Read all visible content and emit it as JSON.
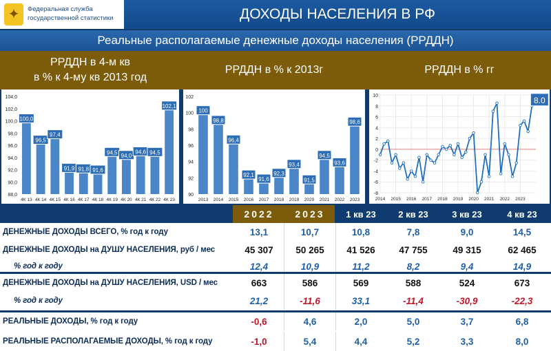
{
  "header": {
    "org": "Федеральная служба государственной статистики",
    "title": "ДОХОДЫ НАСЕЛЕНИЯ В РФ",
    "subtitle": "Реальные располагаемые денежные доходы населения (РРДДН)"
  },
  "panels": {
    "p1_title": "РРДДН в 4-м кв\nв % к 4-му кв 2013 год",
    "p2_title": "РРДДН в % к 2013г",
    "p3_title": "РРДДН в % гг"
  },
  "chart_data": [
    {
      "type": "bar",
      "title": "РРДДН в 4-м кв в % к 4-му кв 2013 год",
      "categories": [
        "4К 13",
        "4К 14",
        "4К 15",
        "4К 16",
        "4К 17",
        "4К 18",
        "4К 19",
        "4К 20",
        "4К 21",
        "4К 22",
        "4К 23"
      ],
      "values": [
        100.0,
        96.5,
        97.4,
        91.9,
        91.8,
        91.6,
        94.5,
        94.0,
        94.6,
        94.5,
        102.1
      ],
      "data_labels": [
        "100,0",
        "96,5",
        "97,4",
        "91,9",
        "91,8",
        "91,6",
        "94,5",
        "94,0",
        "94,6",
        "94,5",
        "102,1"
      ],
      "ylim": [
        88,
        104
      ],
      "yticks": [
        "88,0",
        "90,0",
        "92,0",
        "94,0",
        "96,0",
        "98,0",
        "100,0",
        "102,0",
        "104,0"
      ]
    },
    {
      "type": "bar",
      "title": "РРДДН в % к 2013г",
      "categories": [
        "2013",
        "2014",
        "2015",
        "2016",
        "2017",
        "2018",
        "2019",
        "2020",
        "2021",
        "2022",
        "2023"
      ],
      "values": [
        100,
        98.8,
        96.4,
        92.1,
        91.6,
        92.3,
        93.4,
        91.5,
        94.5,
        93.6,
        98.6
      ],
      "data_labels": [
        "100",
        "98,8",
        "96,4",
        "92,1",
        "91,6",
        "92,3",
        "93,4",
        "91,5",
        "94,5",
        "93,6",
        "98,6"
      ],
      "ylim": [
        90,
        102
      ],
      "yticks": [
        "90",
        "92",
        "94",
        "96",
        "98",
        "100",
        "102"
      ]
    },
    {
      "type": "line",
      "title": "РРДДН в % гг",
      "x_labels": [
        "2014",
        "2015",
        "2016",
        "2017",
        "2018",
        "2019",
        "2020",
        "2021",
        "2022",
        "2023"
      ],
      "x": [
        2014.0,
        2014.25,
        2014.5,
        2014.75,
        2015.0,
        2015.25,
        2015.5,
        2015.75,
        2016.0,
        2016.25,
        2016.5,
        2016.75,
        2017.0,
        2017.25,
        2017.5,
        2017.75,
        2018.0,
        2018.25,
        2018.5,
        2018.75,
        2019.0,
        2019.25,
        2019.5,
        2019.75,
        2020.0,
        2020.25,
        2020.5,
        2020.75,
        2021.0,
        2021.25,
        2021.5,
        2021.75,
        2022.0,
        2022.25,
        2022.5,
        2022.75,
        2023.0,
        2023.25,
        2023.5,
        2023.75
      ],
      "y": [
        -1.0,
        1.0,
        1.5,
        -2.5,
        -1.0,
        -3.5,
        -2.5,
        -5.5,
        -4.0,
        -5.0,
        -1.5,
        -6.0,
        -1.0,
        -2.0,
        -2.5,
        -1.0,
        0.5,
        0.0,
        0.7,
        -1.0,
        1.0,
        -1.5,
        -0.5,
        2.0,
        3.0,
        -8.0,
        -6.0,
        -1.0,
        -5.0,
        7.0,
        8.5,
        -4.5,
        1.0,
        -1.0,
        -5.0,
        -2.5,
        4.4,
        5.2,
        3.3,
        8.0
      ],
      "end_label": "8.0",
      "ylim": [
        -8,
        10
      ],
      "yticks": [
        "-8",
        "-6",
        "-4",
        "-2",
        "0",
        "2",
        "4",
        "6",
        "8",
        "10"
      ]
    }
  ],
  "table": {
    "columns": [
      "2022",
      "2023",
      "1 кв 23",
      "2 кв 23",
      "3 кв 23",
      "4 кв 23"
    ],
    "rows": [
      {
        "label": "ДЕНЕЖНЫЕ ДОХОДЫ ВСЕГО, % год к году",
        "values": [
          "13,1",
          "10,7",
          "10,8",
          "7,8",
          "9,0",
          "14,5"
        ]
      },
      {
        "label": "ДЕНЕЖНЫЕ ДОХОДЫ на ДУШУ НАСЕЛЕНИЯ, руб / мес",
        "values": [
          "45 307",
          "50 265",
          "41 526",
          "47 755",
          "49 315",
          "62 465"
        ]
      },
      {
        "label": "% год к году",
        "values": [
          "12,4",
          "10,9",
          "11,2",
          "8,2",
          "9,4",
          "14,9"
        ]
      },
      {
        "label": "ДЕНЕЖНЫЕ ДОХОДЫ на ДУШУ НАСЕЛЕНИЯ, USD / мес",
        "values": [
          "663",
          "586",
          "569",
          "588",
          "524",
          "673"
        ]
      },
      {
        "label": "% год к году",
        "values": [
          "21,2",
          "-11,6",
          "33,1",
          "-11,4",
          "-30,9",
          "-22,3"
        ]
      },
      {
        "label": "РЕАЛЬНЫЕ ДОХОДЫ, % год к году",
        "values": [
          "-0,6",
          "4,6",
          "2,0",
          "5,0",
          "3,7",
          "6,8"
        ]
      },
      {
        "label": "РЕАЛЬНЫЕ РАСПОЛАГАЕМЫЕ ДОХОДЫ, % год к году",
        "values": [
          "-1,0",
          "5,4",
          "4,4",
          "5,2",
          "3,3",
          "8,0"
        ]
      }
    ]
  },
  "colors": {
    "bar": "#4a86c8",
    "label_bg": "#2d6db5",
    "line": "#1f6fc0",
    "gold": "#7c5c0a",
    "navy": "#0f3b6e",
    "negative": "#c0172a"
  }
}
